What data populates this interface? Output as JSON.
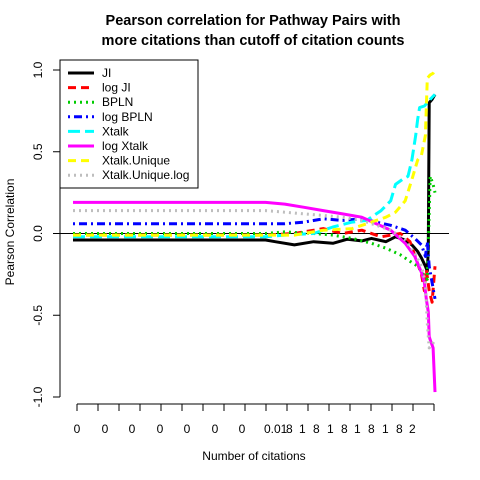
{
  "chart_data": {
    "type": "line",
    "title": [
      "Pearson correlation for Pathway Pairs with",
      "more citations than cutoff of citation counts"
    ],
    "xlabel": "Number of citations",
    "ylabel": "Pearson Correlation",
    "ylim": [
      -1.0,
      1.0
    ],
    "y_ticks": [
      "1.0",
      "0.5",
      "0.0",
      "-0.5",
      "-1.0"
    ],
    "x_tick_labels": [
      "0",
      "0",
      "0",
      "0",
      "0",
      "0",
      "0",
      "0.01",
      "8",
      "1",
      "8",
      "1",
      "8",
      "1",
      "8",
      "1",
      "8",
      "2"
    ],
    "reference_line_y": 0,
    "grid": false,
    "legend_position": "top-left",
    "series": [
      {
        "name": "JI",
        "color": "#000000",
        "dash": "solid",
        "points": [
          [
            0,
            -0.04
          ],
          [
            200,
            -0.04
          ],
          [
            210,
            -0.05
          ],
          [
            230,
            -0.07
          ],
          [
            250,
            -0.05
          ],
          [
            270,
            -0.06
          ],
          [
            285,
            -0.035
          ],
          [
            300,
            -0.045
          ],
          [
            310,
            -0.03
          ],
          [
            325,
            -0.05
          ],
          [
            335,
            -0.02
          ],
          [
            345,
            -0.04
          ],
          [
            352,
            -0.07
          ],
          [
            358,
            -0.11
          ],
          [
            362,
            -0.15
          ],
          [
            366,
            -0.2
          ],
          [
            368,
            -0.23
          ],
          [
            369,
            -0.1
          ],
          [
            370,
            0.8
          ],
          [
            373,
            0.82
          ],
          [
            376,
            0.85
          ]
        ]
      },
      {
        "name": "log JI",
        "color": "#ff0000",
        "dash": "dashed",
        "points": [
          [
            0,
            -0.01
          ],
          [
            200,
            -0.01
          ],
          [
            230,
            0.0
          ],
          [
            260,
            0.03
          ],
          [
            280,
            0.0
          ],
          [
            300,
            0.02
          ],
          [
            320,
            -0.02
          ],
          [
            340,
            0.0
          ],
          [
            350,
            -0.05
          ],
          [
            356,
            -0.15
          ],
          [
            362,
            -0.25
          ],
          [
            365,
            -0.35
          ],
          [
            367,
            -0.22
          ],
          [
            370,
            -0.35
          ],
          [
            373,
            -0.42
          ],
          [
            376,
            -0.2
          ]
        ]
      },
      {
        "name": "BPLN",
        "color": "#00cc00",
        "dash": "dotted",
        "points": [
          [
            0,
            0.0
          ],
          [
            200,
            0.0
          ],
          [
            220,
            0.01
          ],
          [
            250,
            0.0
          ],
          [
            270,
            -0.01
          ],
          [
            290,
            -0.03
          ],
          [
            310,
            -0.06
          ],
          [
            325,
            -0.09
          ],
          [
            340,
            -0.13
          ],
          [
            350,
            -0.17
          ],
          [
            358,
            -0.2
          ],
          [
            364,
            -0.25
          ],
          [
            368,
            -0.28
          ],
          [
            371,
            0.35
          ],
          [
            374,
            0.3
          ],
          [
            376,
            0.25
          ]
        ]
      },
      {
        "name": "log BPLN",
        "color": "#0000ff",
        "dash": "dotdash",
        "points": [
          [
            0,
            0.06
          ],
          [
            200,
            0.06
          ],
          [
            220,
            0.06
          ],
          [
            240,
            0.07
          ],
          [
            260,
            0.09
          ],
          [
            280,
            0.08
          ],
          [
            300,
            0.09
          ],
          [
            315,
            0.07
          ],
          [
            330,
            0.05
          ],
          [
            345,
            0.02
          ],
          [
            355,
            -0.03
          ],
          [
            362,
            -0.07
          ],
          [
            366,
            -0.14
          ],
          [
            368,
            -0.05
          ],
          [
            370,
            -0.2
          ],
          [
            373,
            -0.3
          ],
          [
            376,
            -0.4
          ]
        ]
      },
      {
        "name": "Xtalk",
        "color": "#00ffff",
        "dash": "longdash",
        "points": [
          [
            0,
            -0.02
          ],
          [
            200,
            -0.02
          ],
          [
            220,
            -0.01
          ],
          [
            250,
            0.0
          ],
          [
            270,
            0.04
          ],
          [
            290,
            0.07
          ],
          [
            305,
            0.08
          ],
          [
            320,
            0.14
          ],
          [
            330,
            0.2
          ],
          [
            335,
            0.3
          ],
          [
            342,
            0.33
          ],
          [
            348,
            0.35
          ],
          [
            352,
            0.45
          ],
          [
            356,
            0.6
          ],
          [
            358,
            0.7
          ],
          [
            360,
            0.77
          ],
          [
            365,
            0.78
          ],
          [
            368,
            0.8
          ],
          [
            371,
            0.82
          ],
          [
            374,
            0.84
          ],
          [
            376,
            0.85
          ]
        ]
      },
      {
        "name": "log Xtalk",
        "color": "#ff00ff",
        "dash": "solid",
        "points": [
          [
            0,
            0.19
          ],
          [
            200,
            0.19
          ],
          [
            220,
            0.18
          ],
          [
            240,
            0.16
          ],
          [
            260,
            0.14
          ],
          [
            280,
            0.12
          ],
          [
            300,
            0.1
          ],
          [
            315,
            0.06
          ],
          [
            330,
            0.02
          ],
          [
            345,
            -0.06
          ],
          [
            355,
            -0.14
          ],
          [
            362,
            -0.24
          ],
          [
            365,
            -0.3
          ],
          [
            367,
            -0.4
          ],
          [
            369,
            -0.48
          ],
          [
            370,
            -0.63
          ],
          [
            371,
            -0.65
          ],
          [
            374,
            -0.7
          ],
          [
            376,
            -0.97
          ]
        ]
      },
      {
        "name": "Xtalk.Unique",
        "color": "#ffff00",
        "dash": "dashed",
        "points": [
          [
            0,
            -0.01
          ],
          [
            200,
            -0.01
          ],
          [
            230,
            -0.01
          ],
          [
            260,
            0.02
          ],
          [
            290,
            0.03
          ],
          [
            310,
            0.07
          ],
          [
            325,
            0.1
          ],
          [
            335,
            0.13
          ],
          [
            345,
            0.2
          ],
          [
            352,
            0.33
          ],
          [
            358,
            0.45
          ],
          [
            362,
            0.48
          ],
          [
            366,
            0.6
          ],
          [
            368,
            0.95
          ],
          [
            371,
            0.97
          ],
          [
            374,
            0.98
          ],
          [
            376,
            1.0
          ]
        ]
      },
      {
        "name": "Xtalk.Unique.log",
        "color": "#bebebe",
        "dash": "dotted",
        "points": [
          [
            0,
            0.14
          ],
          [
            200,
            0.14
          ],
          [
            220,
            0.13
          ],
          [
            240,
            0.12
          ],
          [
            260,
            0.11
          ],
          [
            280,
            0.1
          ],
          [
            300,
            0.08
          ],
          [
            315,
            0.05
          ],
          [
            330,
            0.02
          ],
          [
            345,
            -0.04
          ],
          [
            355,
            -0.12
          ],
          [
            362,
            -0.2
          ],
          [
            366,
            -0.3
          ],
          [
            368,
            -0.55
          ],
          [
            370,
            -0.7
          ],
          [
            373,
            -0.68
          ],
          [
            376,
            -0.65
          ]
        ]
      }
    ]
  }
}
